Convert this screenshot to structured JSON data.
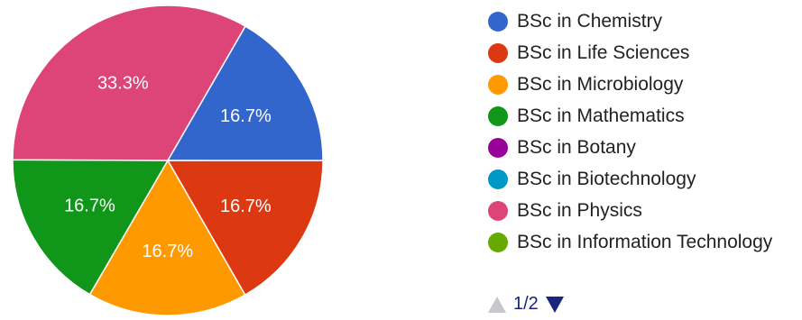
{
  "chart_data": {
    "type": "pie",
    "slices": [
      {
        "label": "BSc in Chemistry",
        "value": 16.7,
        "display": "16.7%",
        "color": "#3366cc"
      },
      {
        "label": "BSc in Life Sciences",
        "value": 16.7,
        "display": "16.7%",
        "color": "#dc3912"
      },
      {
        "label": "BSc in Microbiology",
        "value": 16.7,
        "display": "16.7%",
        "color": "#ff9900"
      },
      {
        "label": "BSc in Mathematics",
        "value": 16.7,
        "display": "16.7%",
        "color": "#109618"
      },
      {
        "label": "BSc in Botany",
        "value": 0,
        "display": "",
        "color": "#990099"
      },
      {
        "label": "BSc in Biotechnology",
        "value": 0,
        "display": "",
        "color": "#0099c6"
      },
      {
        "label": "BSc in Physics",
        "value": 33.3,
        "display": "33.3%",
        "color": "#dd4477"
      },
      {
        "label": "BSc in Information Technology",
        "value": 0,
        "display": "",
        "color": "#66aa00"
      }
    ],
    "legend": {
      "placement": "right",
      "page": "1/2"
    }
  }
}
